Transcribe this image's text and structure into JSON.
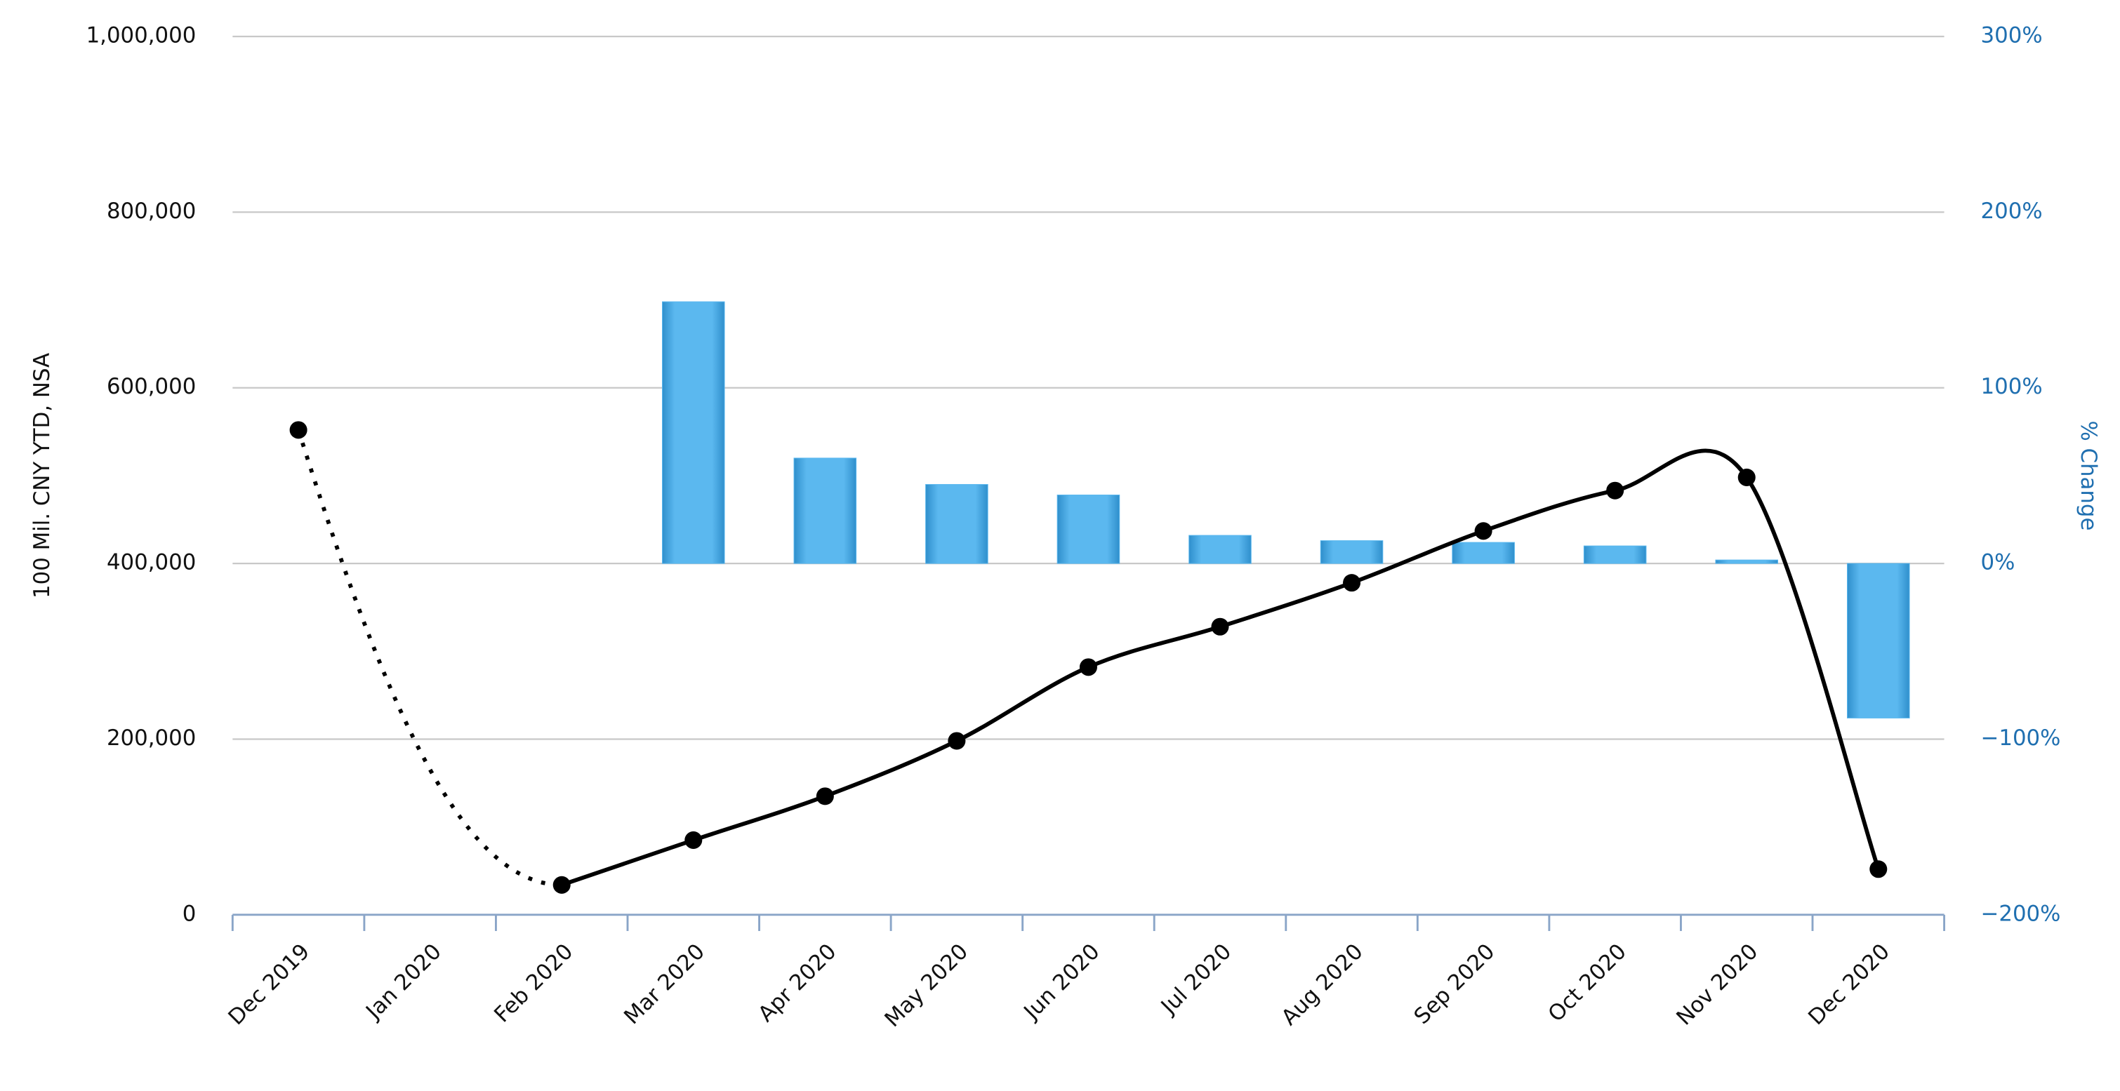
{
  "chart_data": {
    "type": "bar-line",
    "categories": [
      "Dec 2019",
      "Jan 2020",
      "Feb 2020",
      "Mar 2020",
      "Apr 2020",
      "May 2020",
      "Jun 2020",
      "Jul 2020",
      "Aug 2020",
      "Sep 2020",
      "Oct 2020",
      "Nov 2020",
      "Dec 2020"
    ],
    "series": [
      {
        "type": "line",
        "color": "#000000",
        "values": [
          552000,
          null,
          34000,
          85000,
          135000,
          198000,
          282000,
          328000,
          378000,
          437000,
          483000,
          498000,
          52000
        ]
      },
      {
        "type": "bar",
        "color": "#5bb8ef",
        "axis": "y2",
        "values": [
          null,
          null,
          null,
          149,
          60,
          45,
          39,
          16,
          13,
          12,
          10,
          2,
          -88
        ]
      }
    ],
    "y_label": "100 Mil. CNY YTD, NSA",
    "y2_label": "% Change",
    "ylim": [
      0,
      1000000
    ],
    "yticks": [
      0,
      {
        "value": 200000,
        "label": "200,000"
      },
      {
        "value": 400000,
        "label": "400,000"
      },
      {
        "value": 600000,
        "label": "600,000"
      },
      {
        "value": 800000,
        "label": "800,000"
      },
      {
        "value": 1000000,
        "label": "1,000,000"
      }
    ],
    "y2lim": [
      -200,
      300
    ],
    "y2ticks": [
      {
        "value": -200,
        "label": "−200%"
      },
      {
        "value": -100,
        "label": "−100%"
      },
      {
        "value": 0,
        "label": "0%"
      },
      {
        "value": 100,
        "label": "100%"
      },
      {
        "value": 200,
        "label": "200%"
      },
      {
        "value": 300,
        "label": "300%"
      }
    ],
    "grid": true
  }
}
